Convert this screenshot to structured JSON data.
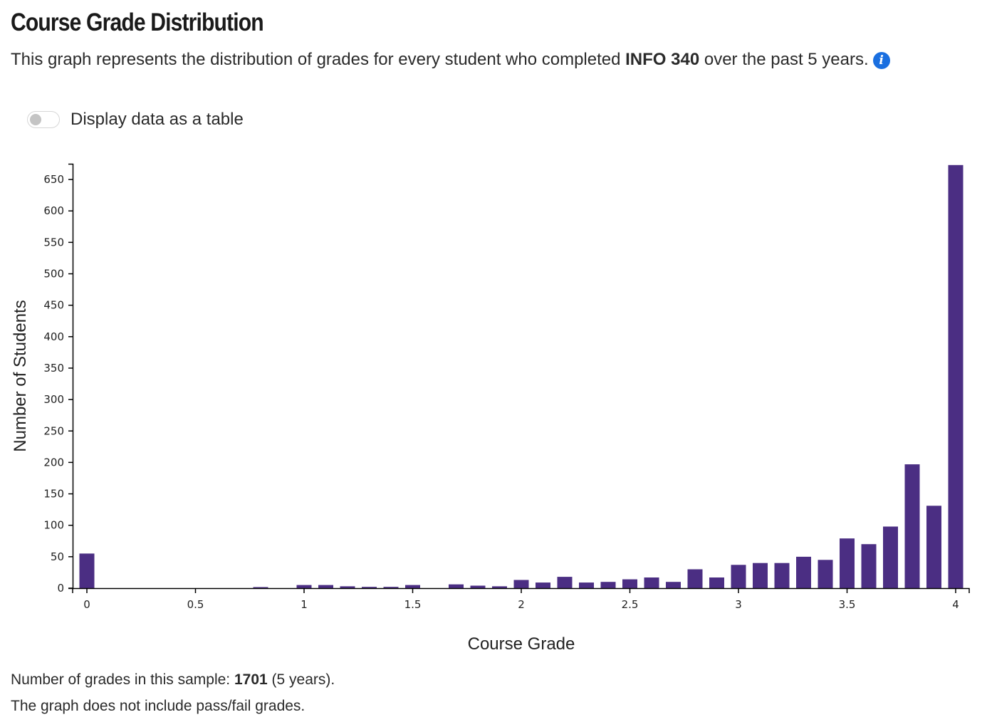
{
  "header": {
    "title": "Course Grade Distribution",
    "desc_prefix": "This graph represents the distribution of grades for every student who completed ",
    "course": "INFO 340",
    "desc_suffix": " over the past 5 years.",
    "info_icon": "info-icon",
    "info_glyph": "i"
  },
  "toggle": {
    "label": "Display data as a table",
    "checked": false
  },
  "footer": {
    "count_prefix": "Number of grades in this sample: ",
    "count": "1701",
    "count_suffix": " (5 years).",
    "note": "The graph does not include pass/fail grades."
  },
  "colors": {
    "bar": "#4b2e83",
    "info": "#1a6fe0"
  },
  "chart_data": {
    "type": "bar",
    "xlabel": "Course Grade",
    "ylabel": "Number of Students",
    "xlim": [
      0,
      4
    ],
    "ylim": [
      0,
      675
    ],
    "x_ticks": [
      "0",
      "0.5",
      "1",
      "1.5",
      "2",
      "2.5",
      "3",
      "3.5",
      "4"
    ],
    "y_ticks": [
      "0",
      "50",
      "100",
      "150",
      "200",
      "250",
      "300",
      "350",
      "400",
      "450",
      "500",
      "550",
      "600",
      "650"
    ],
    "grid": false,
    "legend": "none",
    "x": [
      0,
      0.7,
      0.8,
      0.9,
      1,
      1.1,
      1.2,
      1.3,
      1.4,
      1.5,
      1.6,
      1.7,
      1.8,
      1.9,
      2,
      2.1,
      2.2,
      2.3,
      2.4,
      2.5,
      2.6,
      2.7,
      2.8,
      2.9,
      3,
      3.1,
      3.2,
      3.3,
      3.4,
      3.5,
      3.6,
      3.7,
      3.8,
      3.9,
      4
    ],
    "values": [
      55,
      0,
      1,
      0,
      5,
      5,
      3,
      2,
      2,
      5,
      0,
      6,
      4,
      3,
      13,
      9,
      18,
      9,
      10,
      14,
      17,
      10,
      30,
      17,
      37,
      40,
      40,
      50,
      45,
      79,
      70,
      98,
      197,
      131,
      673
    ]
  }
}
